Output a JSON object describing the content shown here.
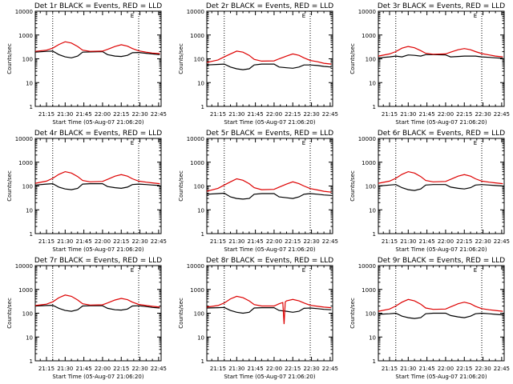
{
  "colors": {
    "events": "#000000",
    "lld": "#dd0000",
    "background": "#ffffff",
    "axis": "#000000"
  },
  "shared": {
    "xlabel": "Start Time (05-Aug-07 21:06:20)",
    "ylabel": "Counts/sec",
    "x_ticks": [
      "21:15",
      "21:30",
      "21:45",
      "22:00",
      "22:15",
      "22:30",
      "22:45"
    ],
    "y_ticks": [
      "1",
      "10",
      "100",
      "1000",
      "10000"
    ],
    "ylim": [
      1,
      10000
    ],
    "yscale": "log",
    "xlim": [
      "21:06",
      "22:47"
    ],
    "vlines_dotted": [
      "21:20",
      "22:29"
    ],
    "corner_label": "E"
  },
  "chart_data": [
    {
      "type": "line",
      "title": "Det 1r BLACK = Events, RED = LLD",
      "series": [
        {
          "name": "",
          "color": "events",
          "x": [
            "21:06",
            "21:15",
            "21:20",
            "21:25",
            "21:30",
            "21:35",
            "21:40",
            "21:44",
            "21:50",
            "22:00",
            "22:04",
            "22:10",
            "22:15",
            "22:20",
            "22:24",
            "22:29",
            "22:35",
            "22:40",
            "22:46"
          ],
          "y": [
            190,
            205,
            210,
            150,
            120,
            110,
            130,
            190,
            195,
            200,
            150,
            130,
            125,
            140,
            180,
            185,
            170,
            160,
            150
          ]
        },
        {
          "name": "",
          "color": "lld",
          "x": [
            "21:06",
            "21:15",
            "21:20",
            "21:25",
            "21:30",
            "21:35",
            "21:40",
            "21:44",
            "21:50",
            "22:00",
            "22:04",
            "22:10",
            "22:15",
            "22:20",
            "22:24",
            "22:29",
            "22:35",
            "22:40",
            "22:46"
          ],
          "y": [
            205,
            230,
            280,
            400,
            520,
            460,
            330,
            230,
            205,
            210,
            250,
            330,
            390,
            340,
            270,
            215,
            190,
            175,
            165
          ]
        }
      ]
    },
    {
      "type": "line",
      "title": "Det 2r BLACK = Events, RED = LLD",
      "series": [
        {
          "name": "",
          "color": "events",
          "x": [
            "21:06",
            "21:15",
            "21:20",
            "21:25",
            "21:30",
            "21:35",
            "21:40",
            "21:44",
            "21:50",
            "22:00",
            "22:04",
            "22:10",
            "22:15",
            "22:20",
            "22:24",
            "22:29",
            "22:35",
            "22:40",
            "22:46"
          ],
          "y": [
            55,
            58,
            60,
            45,
            38,
            35,
            38,
            55,
            60,
            60,
            45,
            42,
            40,
            45,
            55,
            55,
            52,
            48,
            45
          ]
        },
        {
          "name": "",
          "color": "lld",
          "x": [
            "21:06",
            "21:15",
            "21:20",
            "21:25",
            "21:30",
            "21:35",
            "21:40",
            "21:44",
            "21:50",
            "22:00",
            "22:04",
            "22:10",
            "22:15",
            "22:20",
            "22:24",
            "22:29",
            "22:35",
            "22:40",
            "22:46"
          ],
          "y": [
            70,
            90,
            120,
            160,
            210,
            190,
            140,
            95,
            80,
            82,
            100,
            130,
            160,
            140,
            110,
            85,
            75,
            65,
            60
          ]
        }
      ]
    },
    {
      "type": "line",
      "title": "Det 3r BLACK = Events, RED = LLD",
      "series": [
        {
          "name": "",
          "color": "events",
          "x": [
            "21:06",
            "21:15",
            "21:20",
            "21:25",
            "21:30",
            "21:35",
            "21:40",
            "21:44",
            "21:50",
            "22:00",
            "22:04",
            "22:10",
            "22:15",
            "22:20",
            "22:24",
            "22:29",
            "22:35",
            "22:40",
            "22:46"
          ],
          "y": [
            110,
            120,
            130,
            120,
            145,
            140,
            130,
            150,
            150,
            145,
            120,
            125,
            130,
            130,
            130,
            120,
            115,
            110,
            105
          ]
        },
        {
          "name": "",
          "color": "lld",
          "x": [
            "21:06",
            "21:15",
            "21:20",
            "21:25",
            "21:30",
            "21:35",
            "21:40",
            "21:44",
            "21:50",
            "22:00",
            "22:04",
            "22:10",
            "22:15",
            "22:20",
            "22:24",
            "22:29",
            "22:35",
            "22:40",
            "22:46"
          ],
          "y": [
            130,
            160,
            200,
            280,
            330,
            290,
            220,
            170,
            155,
            160,
            190,
            240,
            270,
            240,
            200,
            165,
            145,
            130,
            120
          ]
        }
      ]
    },
    {
      "type": "line",
      "title": "Det 4r BLACK = Events, RED = LLD",
      "series": [
        {
          "name": "",
          "color": "events",
          "x": [
            "21:06",
            "21:15",
            "21:20",
            "21:25",
            "21:30",
            "21:35",
            "21:40",
            "21:44",
            "21:50",
            "22:00",
            "22:04",
            "22:10",
            "22:15",
            "22:20",
            "22:24",
            "22:29",
            "22:35",
            "22:40",
            "22:46"
          ],
          "y": [
            110,
            120,
            125,
            90,
            75,
            70,
            80,
            120,
            125,
            125,
            95,
            85,
            80,
            90,
            115,
            120,
            115,
            110,
            105
          ]
        },
        {
          "name": "",
          "color": "lld",
          "x": [
            "21:06",
            "21:15",
            "21:20",
            "21:25",
            "21:30",
            "21:35",
            "21:40",
            "21:44",
            "21:50",
            "22:00",
            "22:04",
            "22:10",
            "22:15",
            "22:20",
            "22:24",
            "22:29",
            "22:35",
            "22:40",
            "22:46"
          ],
          "y": [
            130,
            160,
            210,
            310,
            400,
            350,
            250,
            170,
            150,
            155,
            190,
            260,
            300,
            260,
            200,
            160,
            145,
            135,
            125
          ]
        }
      ]
    },
    {
      "type": "line",
      "title": "Det 5r BLACK = Events, RED = LLD",
      "series": [
        {
          "name": "",
          "color": "events",
          "x": [
            "21:06",
            "21:15",
            "21:20",
            "21:25",
            "21:30",
            "21:35",
            "21:40",
            "21:44",
            "21:50",
            "22:00",
            "22:04",
            "22:10",
            "22:15",
            "22:20",
            "22:24",
            "22:29",
            "22:35",
            "22:40",
            "22:46"
          ],
          "y": [
            45,
            48,
            50,
            35,
            30,
            28,
            30,
            45,
            48,
            48,
            35,
            32,
            30,
            35,
            45,
            48,
            45,
            42,
            40
          ]
        },
        {
          "name": "",
          "color": "lld",
          "x": [
            "21:06",
            "21:15",
            "21:20",
            "21:25",
            "21:30",
            "21:35",
            "21:40",
            "21:44",
            "21:50",
            "22:00",
            "22:04",
            "22:10",
            "22:15",
            "22:20",
            "22:24",
            "22:29",
            "22:35",
            "22:40",
            "22:46"
          ],
          "y": [
            60,
            80,
            110,
            150,
            200,
            175,
            125,
            85,
            70,
            72,
            90,
            120,
            150,
            125,
            100,
            78,
            68,
            60,
            55
          ]
        }
      ]
    },
    {
      "type": "line",
      "title": "Det 6r BLACK = Events, RED = LLD",
      "series": [
        {
          "name": "",
          "color": "events",
          "x": [
            "21:06",
            "21:15",
            "21:20",
            "21:25",
            "21:30",
            "21:35",
            "21:40",
            "21:44",
            "21:50",
            "22:00",
            "22:04",
            "22:10",
            "22:15",
            "22:20",
            "22:24",
            "22:29",
            "22:35",
            "22:40",
            "22:46"
          ],
          "y": [
            100,
            110,
            115,
            85,
            70,
            65,
            75,
            110,
            115,
            115,
            90,
            80,
            75,
            85,
            110,
            115,
            110,
            105,
            100
          ]
        },
        {
          "name": "",
          "color": "lld",
          "x": [
            "21:06",
            "21:15",
            "21:20",
            "21:25",
            "21:30",
            "21:35",
            "21:40",
            "21:44",
            "21:50",
            "22:00",
            "22:04",
            "22:10",
            "22:15",
            "22:20",
            "22:24",
            "22:29",
            "22:35",
            "22:40",
            "22:46"
          ],
          "y": [
            130,
            160,
            210,
            310,
            400,
            350,
            250,
            170,
            150,
            155,
            190,
            260,
            300,
            260,
            200,
            160,
            145,
            135,
            125
          ]
        }
      ]
    },
    {
      "type": "line",
      "title": "Det 7r BLACK = Events, RED = LLD",
      "series": [
        {
          "name": "",
          "color": "events",
          "x": [
            "21:06",
            "21:15",
            "21:20",
            "21:25",
            "21:30",
            "21:35",
            "21:40",
            "21:44",
            "21:50",
            "22:00",
            "22:04",
            "22:10",
            "22:15",
            "22:20",
            "22:24",
            "22:29",
            "22:35",
            "22:40",
            "22:46"
          ],
          "y": [
            200,
            210,
            215,
            160,
            130,
            120,
            140,
            200,
            205,
            205,
            160,
            140,
            135,
            150,
            200,
            205,
            190,
            175,
            165
          ]
        },
        {
          "name": "",
          "color": "lld",
          "x": [
            "21:06",
            "21:15",
            "21:20",
            "21:25",
            "21:30",
            "21:35",
            "21:40",
            "21:44",
            "21:50",
            "22:00",
            "22:04",
            "22:10",
            "22:15",
            "22:20",
            "22:24",
            "22:29",
            "22:35",
            "22:40",
            "22:46"
          ],
          "y": [
            210,
            240,
            300,
            450,
            580,
            510,
            360,
            250,
            220,
            225,
            270,
            360,
            420,
            370,
            290,
            235,
            210,
            195,
            180
          ]
        }
      ]
    },
    {
      "type": "line",
      "title": "Det 8r BLACK = Events, RED = LLD",
      "series": [
        {
          "name": "",
          "color": "events",
          "x": [
            "21:06",
            "21:15",
            "21:20",
            "21:25",
            "21:30",
            "21:35",
            "21:40",
            "21:44",
            "21:50",
            "22:00",
            "22:04",
            "22:10",
            "22:15",
            "22:20",
            "22:24",
            "22:29",
            "22:35",
            "22:40",
            "22:46"
          ],
          "y": [
            165,
            170,
            175,
            130,
            110,
            100,
            110,
            165,
            170,
            170,
            130,
            120,
            110,
            120,
            160,
            165,
            155,
            145,
            140
          ]
        },
        {
          "name": "",
          "color": "lld",
          "x": [
            "21:06",
            "21:15",
            "21:20",
            "21:25",
            "21:30",
            "21:35",
            "21:40",
            "21:44",
            "21:50",
            "22:00",
            "22:04",
            "22:07",
            "22:08",
            "22:09",
            "22:10",
            "22:15",
            "22:20",
            "22:24",
            "22:29",
            "22:35",
            "22:40",
            "22:46"
          ],
          "y": [
            180,
            210,
            270,
            400,
            510,
            450,
            330,
            230,
            200,
            200,
            250,
            280,
            35,
            300,
            330,
            380,
            330,
            270,
            215,
            195,
            180,
            170
          ]
        }
      ]
    },
    {
      "type": "line",
      "title": "Det 9r BLACK = Events, RED = LLD",
      "series": [
        {
          "name": "",
          "color": "events",
          "x": [
            "21:06",
            "21:15",
            "21:20",
            "21:25",
            "21:30",
            "21:35",
            "21:40",
            "21:44",
            "21:50",
            "22:00",
            "22:04",
            "22:10",
            "22:15",
            "22:20",
            "22:24",
            "22:29",
            "22:35",
            "22:40",
            "22:46"
          ],
          "y": [
            90,
            95,
            100,
            75,
            65,
            60,
            65,
            95,
            100,
            100,
            80,
            70,
            65,
            75,
            95,
            100,
            95,
            90,
            85
          ]
        },
        {
          "name": "",
          "color": "lld",
          "x": [
            "21:06",
            "21:15",
            "21:20",
            "21:25",
            "21:30",
            "21:35",
            "21:40",
            "21:44",
            "21:50",
            "22:00",
            "22:04",
            "22:10",
            "22:15",
            "22:20",
            "22:24",
            "22:29",
            "22:35",
            "22:40",
            "22:46"
          ],
          "y": [
            120,
            150,
            200,
            290,
            380,
            330,
            240,
            165,
            145,
            150,
            185,
            250,
            290,
            250,
            195,
            155,
            140,
            130,
            120
          ]
        }
      ]
    }
  ]
}
